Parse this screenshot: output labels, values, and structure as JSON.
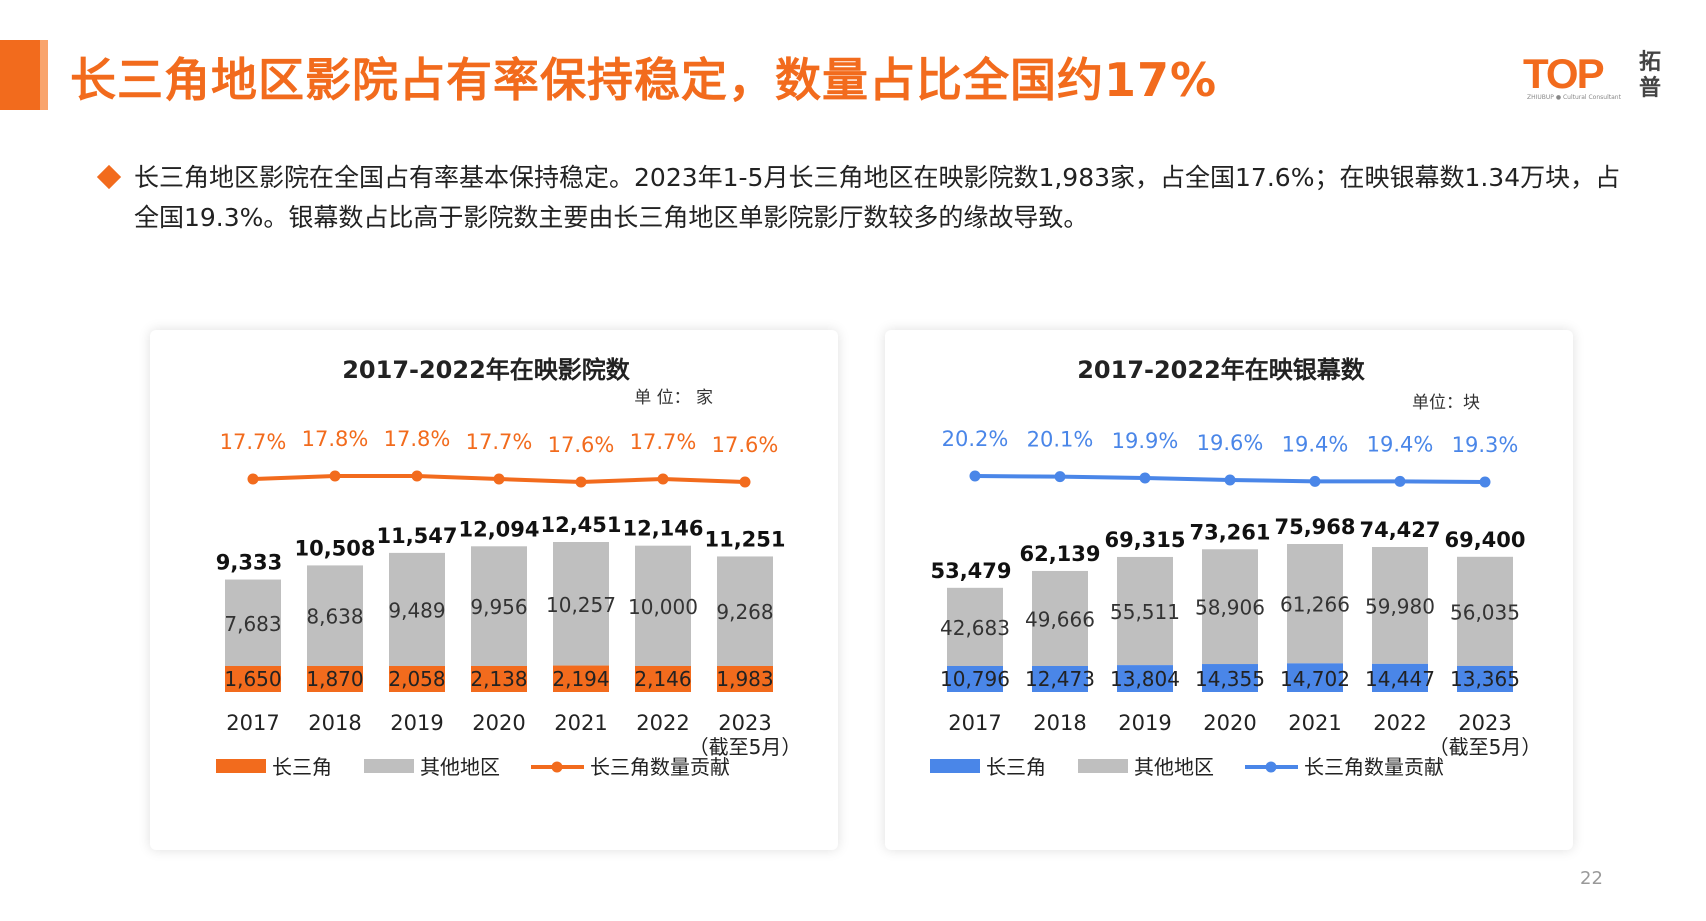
{
  "header": {
    "title": "长三角地区影院占有率保持稳定，数量占比全国约17%",
    "logo_text": "TOP",
    "logo_sub": "拓普",
    "logo_small": "ZHIUBUP ● Cultural Consultant"
  },
  "summary": {
    "text": "长三角地区影院在全国占有率基本保持稳定。2023年1-5月长三角地区在映影院数1,983家，占全国17.6%；在映银幕数1.34万块，占全国19.3%。银幕数占比高于影院数主要由长三角地区单影院影厅数较多的缘故导致。"
  },
  "page_number": "22",
  "colors": {
    "accent": "#f26b1d",
    "cinema_yrd": "#f26b1d",
    "screen_yrd": "#4a86e8",
    "other_regions": "#bfbfbf"
  },
  "chart_data": [
    {
      "type": "bar",
      "stacked": true,
      "title": "2017-2022年在映影院数",
      "unit_label": "单 位： 家",
      "categories": [
        "2017",
        "2018",
        "2019",
        "2020",
        "2021",
        "2022",
        "2023"
      ],
      "category_notes": [
        "",
        "",
        "",
        "",
        "",
        "",
        "（截至5月）"
      ],
      "series": [
        {
          "name": "长三角",
          "values": [
            1650,
            1870,
            2058,
            2138,
            2194,
            2146,
            1983
          ],
          "labels": [
            "1,650",
            "1,870",
            "2,058",
            "2,138",
            "2,194",
            "2,146",
            "1,983"
          ],
          "color": "#f26b1d"
        },
        {
          "name": "其他地区",
          "values": [
            7683,
            8638,
            9489,
            9956,
            10257,
            10000,
            9268
          ],
          "labels": [
            "7,683",
            "8,638",
            "9,489",
            "9,956",
            "10,257",
            "10,000",
            "9,268"
          ],
          "color": "#bfbfbf"
        }
      ],
      "totals": [
        9333,
        10508,
        11547,
        12094,
        12451,
        12146,
        11251
      ],
      "total_labels": [
        "9,333",
        "10,508",
        "11,547",
        "12,094",
        "12,451",
        "12,146",
        "11,251"
      ],
      "line": {
        "name": "长三角数量贡献",
        "values": [
          17.7,
          17.8,
          17.8,
          17.7,
          17.6,
          17.7,
          17.6
        ],
        "labels": [
          "17.7%",
          "17.8%",
          "17.8%",
          "17.7%",
          "17.6%",
          "17.7%",
          "17.6%"
        ],
        "color": "#f26b1d"
      },
      "legend": [
        "长三角",
        "其他地区",
        "长三角数量贡献"
      ],
      "legend_position": "bottom",
      "grid": false
    },
    {
      "type": "bar",
      "stacked": true,
      "title": "2017-2022年在映银幕数",
      "unit_label": "单位：块",
      "categories": [
        "2017",
        "2018",
        "2019",
        "2020",
        "2021",
        "2022",
        "2023"
      ],
      "category_notes": [
        "",
        "",
        "",
        "",
        "",
        "",
        "（截至5月）"
      ],
      "series": [
        {
          "name": "长三角",
          "values": [
            10796,
            12473,
            13804,
            14355,
            14702,
            14447,
            13365
          ],
          "labels": [
            "10,796",
            "12,473",
            "13,804",
            "14,355",
            "14,702",
            "14,447",
            "13,365"
          ],
          "color": "#4a86e8"
        },
        {
          "name": "其他地区",
          "values": [
            42683,
            49666,
            55511,
            58906,
            61266,
            59980,
            56035
          ],
          "labels": [
            "42,683",
            "49,666",
            "55,511",
            "58,906",
            "61,266",
            "59,980",
            "56,035"
          ],
          "color": "#bfbfbf"
        }
      ],
      "totals": [
        53479,
        62139,
        69315,
        73261,
        75968,
        74427,
        69400
      ],
      "total_labels": [
        "53,479",
        "62,139",
        "69,315",
        "73,261",
        "75,968",
        "74,427",
        "69,400"
      ],
      "line": {
        "name": "长三角数量贡献",
        "values": [
          20.2,
          20.1,
          19.9,
          19.6,
          19.4,
          19.4,
          19.3
        ],
        "labels": [
          "20.2%",
          "20.1%",
          "19.9%",
          "19.6%",
          "19.4%",
          "19.4%",
          "19.3%"
        ],
        "color": "#4a86e8"
      },
      "legend": [
        "长三角",
        "其他地区",
        "长三角数量贡献"
      ],
      "legend_position": "bottom",
      "grid": false
    }
  ]
}
